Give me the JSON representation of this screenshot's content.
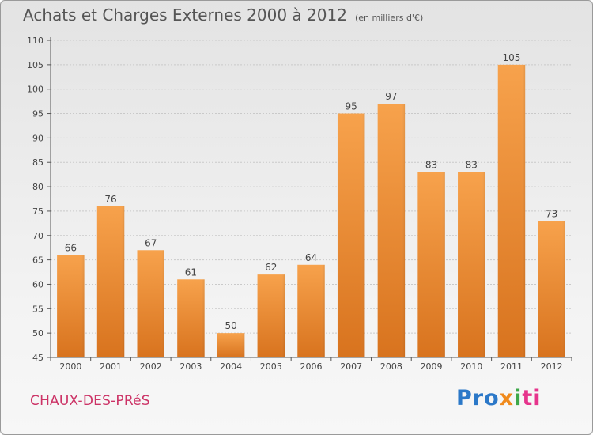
{
  "title": "Achats et Charges Externes 2000 à 2012",
  "subtitle": "(en milliers d'€)",
  "commune": "CHAUX-DES-PRéS",
  "brand": {
    "part1": "Pro",
    "part2": "x",
    "part3": "i",
    "part4": "ti"
  },
  "colors": {
    "bar_top": "#f7a24c",
    "bar_bottom": "#d8731e",
    "commune": "#cc3366"
  },
  "chart_data": {
    "type": "bar",
    "title": "Achats et Charges Externes 2000 à 2012",
    "subtitle": "(en milliers d'€)",
    "categories": [
      "2000",
      "2001",
      "2002",
      "2003",
      "2004",
      "2005",
      "2006",
      "2007",
      "2008",
      "2009",
      "2010",
      "2011",
      "2012"
    ],
    "values": [
      66,
      76,
      67,
      61,
      50,
      62,
      64,
      95,
      97,
      83,
      83,
      105,
      73
    ],
    "ylim": [
      45,
      110
    ],
    "yticks": [
      45,
      50,
      55,
      60,
      65,
      70,
      75,
      80,
      85,
      90,
      95,
      100,
      105,
      110
    ],
    "grid": true,
    "xlabel": "",
    "ylabel": ""
  }
}
